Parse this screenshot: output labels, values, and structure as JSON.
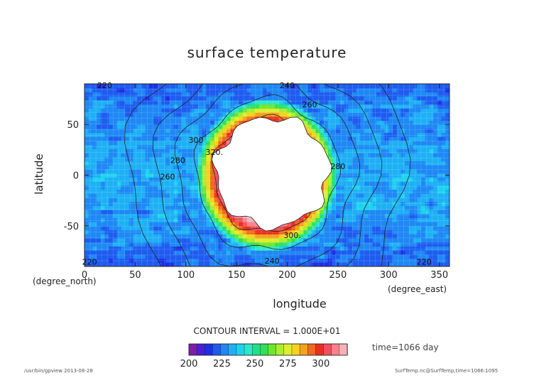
{
  "chart_data": {
    "type": "contour",
    "title": "surface temperature",
    "xlabel": "longitude",
    "ylabel": "latitude",
    "x_unit_label": "(degree_east)",
    "y_unit_label": "(degree_north)",
    "xlim": [
      0,
      360
    ],
    "ylim": [
      -90,
      90
    ],
    "x_ticks": [
      0,
      50,
      100,
      150,
      200,
      250,
      300,
      350
    ],
    "y_ticks": [
      -50,
      0,
      50
    ],
    "contour_interval_label": "CONTOUR INTERVAL = 1.000E+01",
    "colorbar": {
      "min": 200,
      "max": 320,
      "ticks": [
        200,
        225,
        250,
        275,
        300
      ],
      "colors": [
        "#7a1fa6",
        "#4a1fd0",
        "#1e2ee6",
        "#1e5cf0",
        "#1e88f5",
        "#1eb0f5",
        "#1ed2ee",
        "#2ee6c8",
        "#1ee08c",
        "#2ee05a",
        "#6ee62e",
        "#aaee2e",
        "#dcee2e",
        "#f5d21e",
        "#f5a01e",
        "#f06a1e",
        "#ec2e1e",
        "#f0505e",
        "#f5828c",
        "#f8b0b6"
      ]
    },
    "contour_labels": [
      {
        "text": "220",
        "x": 20,
        "y": 88
      },
      {
        "text": "240",
        "x": 200,
        "y": 88
      },
      {
        "text": "260",
        "x": 222,
        "y": 69
      },
      {
        "text": "300",
        "x": 110,
        "y": 34
      },
      {
        "text": "320.",
        "x": 128,
        "y": 22
      },
      {
        "text": "280",
        "x": 92,
        "y": 14
      },
      {
        "text": "260",
        "x": 82,
        "y": -2
      },
      {
        "text": "280",
        "x": 250,
        "y": 8
      },
      {
        "text": "300.",
        "x": 205,
        "y": -60
      },
      {
        "text": "240",
        "x": 185,
        "y": -85
      },
      {
        "text": "220",
        "x": 5,
        "y": -86
      },
      {
        "text": "220",
        "x": 335,
        "y": -86
      }
    ]
  },
  "annotations": {
    "time": "time=1066 day",
    "footer_left": "/usr/bin/gpview  2013-08-28",
    "footer_right": "SurfTemp.nc@SurfTemp,time=1066:1095"
  }
}
